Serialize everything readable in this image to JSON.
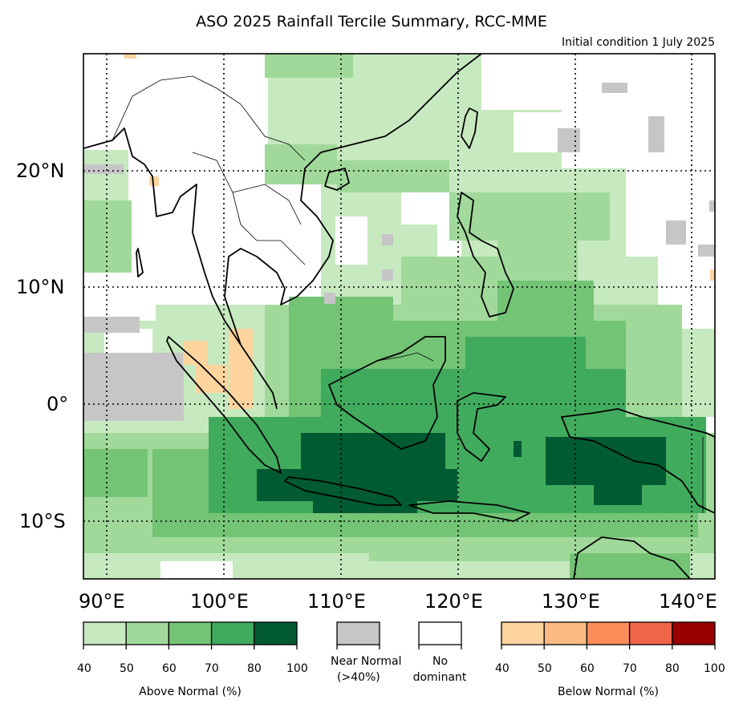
{
  "title": "ASO 2025 Rainfall Tercile Summary, RCC-MME",
  "subtitle": "Initial condition 1 July 2025",
  "map": {
    "region": "Southeast Asia",
    "lon_range": [
      88,
      142
    ],
    "lat_range": [
      -15,
      30
    ],
    "lon_ticks": [
      "90°E",
      "100°E",
      "110°E",
      "120°E",
      "130°E",
      "140°E"
    ],
    "lat_ticks": [
      "20°N",
      "10°N",
      "0°",
      "10°S"
    ],
    "graticule": "dotted"
  },
  "legend": {
    "above_normal": {
      "caption": "Above Normal (%)",
      "ticks": [
        "40",
        "50",
        "60",
        "70",
        "80",
        "100"
      ],
      "colors": [
        "#c7e9c0",
        "#a1d99b",
        "#74c476",
        "#41ab5d",
        "#005a32"
      ]
    },
    "near_normal": {
      "caption": "Near Normal\n(>40%)",
      "line1": "Near Normal",
      "line2": "(>40%)",
      "color": "#c6c6c6"
    },
    "no_dominant": {
      "line1": "No",
      "line2": "dominant",
      "color": "#ffffff"
    },
    "below_normal": {
      "caption": "Below Normal (%)",
      "ticks": [
        "40",
        "50",
        "60",
        "70",
        "80",
        "100"
      ],
      "colors": [
        "#fdd49e",
        "#fdbb84",
        "#fc8d59",
        "#ef6548",
        "#990000"
      ]
    }
  }
}
